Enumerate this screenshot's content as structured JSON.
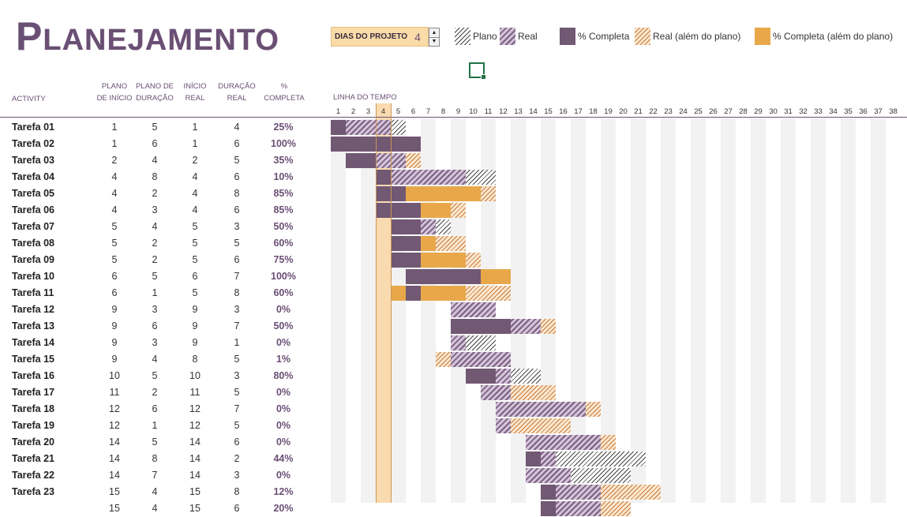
{
  "title": {
    "first": "P",
    "rest": "LANEJAMENTO"
  },
  "days": {
    "label": "DIAS DO PROJETO",
    "value": "4",
    "value_num": 4
  },
  "legend": {
    "plan": "Plano",
    "real": "Real",
    "complete": "% Completa",
    "real_beyond": "Real (além do plano)",
    "complete_beyond": "% Completa (além do plano)"
  },
  "headers": {
    "activity": "ACTIVITY",
    "plan_start_1": "PLANO",
    "plan_start_2": "DE INÍCIO",
    "plan_dur_1": "PLANO DE",
    "plan_dur_2": "DURAÇÃO",
    "real_start_1": "INÍCIO",
    "real_start_2": "REAL",
    "real_dur_1": "DURAÇÃO",
    "real_dur_2": "REAL",
    "pct_1": "%",
    "pct_2": "COMPLETA",
    "timeline": "LINHA DO TEMPO"
  },
  "periods": [
    "1",
    "2",
    "3",
    "4",
    "5",
    "6",
    "7",
    "8",
    "9",
    "10",
    "11",
    "12",
    "13",
    "14",
    "15",
    "16",
    "17",
    "18",
    "19",
    "20",
    "21",
    "22",
    "23",
    "24",
    "25",
    "26",
    "27",
    "28",
    "29",
    "30",
    "31",
    "32",
    "33",
    "34",
    "35",
    "36",
    "37",
    "38"
  ],
  "colors": {
    "accent": "#6a4f74",
    "complete": "#715873",
    "complete_beyond": "#e8a84a",
    "today_highlight": "#f9d8a8",
    "grid_shade": "#f2f2f2"
  },
  "tasks": [
    {
      "name": "Tarefa 01",
      "plan_start": "1",
      "plan_dur": "5",
      "real_start": "1",
      "real_dur": "4",
      "pct": "25%"
    },
    {
      "name": "Tarefa 02",
      "plan_start": "1",
      "plan_dur": "6",
      "real_start": "1",
      "real_dur": "6",
      "pct": "100%"
    },
    {
      "name": "Tarefa 03",
      "plan_start": "2",
      "plan_dur": "4",
      "real_start": "2",
      "real_dur": "5",
      "pct": "35%"
    },
    {
      "name": "Tarefa 04",
      "plan_start": "4",
      "plan_dur": "8",
      "real_start": "4",
      "real_dur": "6",
      "pct": "10%"
    },
    {
      "name": "Tarefa 05",
      "plan_start": "4",
      "plan_dur": "2",
      "real_start": "4",
      "real_dur": "8",
      "pct": "85%"
    },
    {
      "name": "Tarefa 06",
      "plan_start": "4",
      "plan_dur": "3",
      "real_start": "4",
      "real_dur": "6",
      "pct": "85%"
    },
    {
      "name": "Tarefa 07",
      "plan_start": "5",
      "plan_dur": "4",
      "real_start": "5",
      "real_dur": "3",
      "pct": "50%"
    },
    {
      "name": "Tarefa 08",
      "plan_start": "5",
      "plan_dur": "2",
      "real_start": "5",
      "real_dur": "5",
      "pct": "60%"
    },
    {
      "name": "Tarefa 09",
      "plan_start": "5",
      "plan_dur": "2",
      "real_start": "5",
      "real_dur": "6",
      "pct": "75%"
    },
    {
      "name": "Tarefa 10",
      "plan_start": "6",
      "plan_dur": "5",
      "real_start": "6",
      "real_dur": "7",
      "pct": "100%"
    },
    {
      "name": "Tarefa 11",
      "plan_start": "6",
      "plan_dur": "1",
      "real_start": "5",
      "real_dur": "8",
      "pct": "60%"
    },
    {
      "name": "Tarefa 12",
      "plan_start": "9",
      "plan_dur": "3",
      "real_start": "9",
      "real_dur": "3",
      "pct": "0%"
    },
    {
      "name": "Tarefa 13",
      "plan_start": "9",
      "plan_dur": "6",
      "real_start": "9",
      "real_dur": "7",
      "pct": "50%"
    },
    {
      "name": "Tarefa 14",
      "plan_start": "9",
      "plan_dur": "3",
      "real_start": "9",
      "real_dur": "1",
      "pct": "0%"
    },
    {
      "name": "Tarefa 15",
      "plan_start": "9",
      "plan_dur": "4",
      "real_start": "8",
      "real_dur": "5",
      "pct": "1%"
    },
    {
      "name": "Tarefa 16",
      "plan_start": "10",
      "plan_dur": "5",
      "real_start": "10",
      "real_dur": "3",
      "pct": "80%"
    },
    {
      "name": "Tarefa 17",
      "plan_start": "11",
      "plan_dur": "2",
      "real_start": "11",
      "real_dur": "5",
      "pct": "0%"
    },
    {
      "name": "Tarefa 18",
      "plan_start": "12",
      "plan_dur": "6",
      "real_start": "12",
      "real_dur": "7",
      "pct": "0%"
    },
    {
      "name": "Tarefa 19",
      "plan_start": "12",
      "plan_dur": "1",
      "real_start": "12",
      "real_dur": "5",
      "pct": "0%"
    },
    {
      "name": "Tarefa 20",
      "plan_start": "14",
      "plan_dur": "5",
      "real_start": "14",
      "real_dur": "6",
      "pct": "0%"
    },
    {
      "name": "Tarefa 21",
      "plan_start": "14",
      "plan_dur": "8",
      "real_start": "14",
      "real_dur": "2",
      "pct": "44%"
    },
    {
      "name": "Tarefa 22",
      "plan_start": "14",
      "plan_dur": "7",
      "real_start": "14",
      "real_dur": "3",
      "pct": "0%"
    },
    {
      "name": "Tarefa 23",
      "plan_start": "15",
      "plan_dur": "4",
      "real_start": "15",
      "real_dur": "8",
      "pct": "12%"
    },
    {
      "name": "",
      "plan_start": "15",
      "plan_dur": "4",
      "real_start": "15",
      "real_dur": "6",
      "pct": "20%"
    }
  ]
}
